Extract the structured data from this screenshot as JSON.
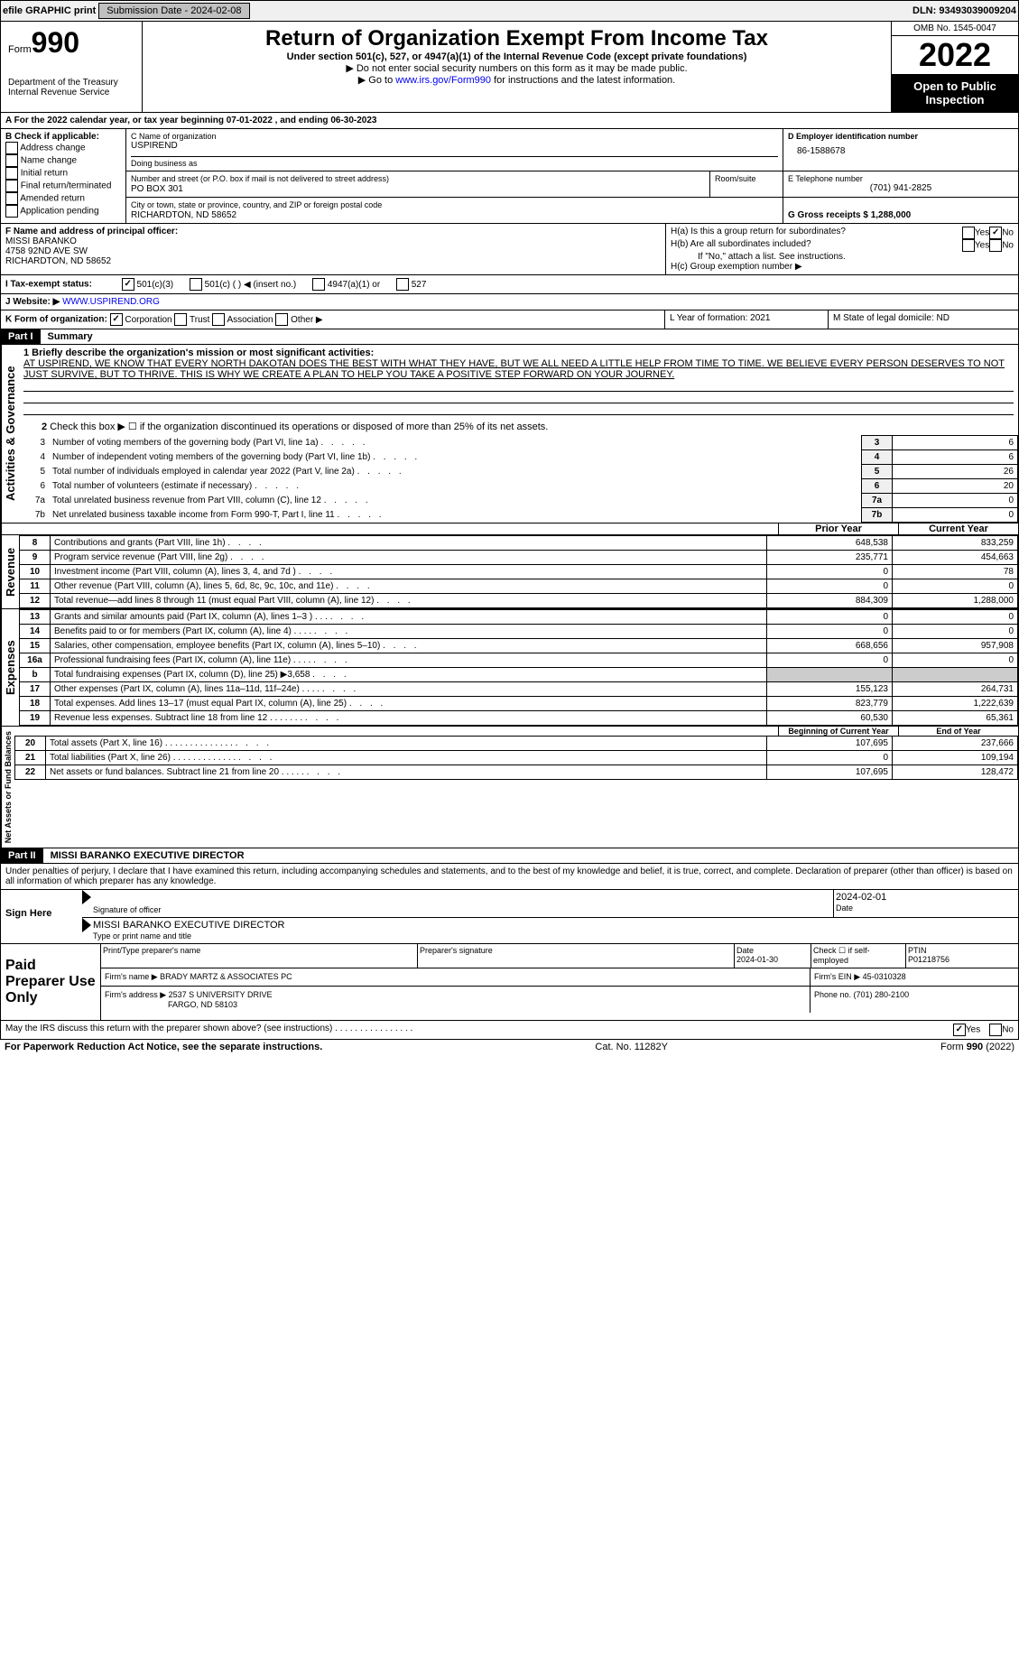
{
  "topbar": {
    "efile": "efile GRAPHIC print",
    "sub": "Submission Date - 2024-02-08",
    "dln": "DLN: 93493039009204"
  },
  "header": {
    "form": "990",
    "form_pre": "Form",
    "title": "Return of Organization Exempt From Income Tax",
    "sub1": "Under section 501(c), 527, or 4947(a)(1) of the Internal Revenue Code (except private foundations)",
    "sub2": "▶ Do not enter social security numbers on this form as it may be made public.",
    "sub3": "▶ Go to www.irs.gov/Form990 for instructions and the latest information.",
    "link": "www.irs.gov/Form990",
    "dept": "Department of the Treasury",
    "irs": "Internal Revenue Service",
    "omb": "OMB No. 1545-0047",
    "year": "2022",
    "open": "Open to Public Inspection"
  },
  "A": {
    "text": "A For the 2022 calendar year, or tax year beginning 07-01-2022 , and ending 06-30-2023"
  },
  "B": {
    "label": "B Check if applicable:",
    "addr": "Address change",
    "name": "Name change",
    "init": "Initial return",
    "final": "Final return/terminated",
    "amend": "Amended return",
    "app": "Application pending"
  },
  "C": {
    "label": "C Name of organization",
    "org": "USPIREND",
    "dba_label": "Doing business as",
    "dba": "",
    "addr_label": "Number and street (or P.O. box if mail is not delivered to street address)",
    "room": "Room/suite",
    "addr": "PO BOX 301",
    "city_label": "City or town, state or province, country, and ZIP or foreign postal code",
    "city": "RICHARDTON, ND 58652"
  },
  "D": {
    "label": "D Employer identification number",
    "ein": "86-1588678"
  },
  "E": {
    "label": "E Telephone number",
    "tel": "(701) 941-2825"
  },
  "G": {
    "label": "G Gross receipts $ 1,288,000"
  },
  "F": {
    "label": "F Name and address of principal officer:",
    "l1": "MISSI BARANKO",
    "l2": "4758 92ND AVE SW",
    "l3": "RICHARDTON, ND 58652"
  },
  "H": {
    "a": "H(a) Is this a group return for subordinates?",
    "b": "H(b) Are all subordinates included?",
    "note": "If \"No,\" attach a list. See instructions.",
    "c": "H(c) Group exemption number ▶",
    "yes": "Yes",
    "no": "No"
  },
  "I": {
    "label": "I Tax-exempt status:",
    "c3": "501(c)(3)",
    "c": "501(c) ( ) ◀ (insert no.)",
    "a1": "4947(a)(1) or",
    "s527": "527"
  },
  "J": {
    "label": "J Website: ▶",
    "url": "WWW.USPIREND.ORG"
  },
  "K": {
    "label": "K Form of organization:",
    "corp": "Corporation",
    "trust": "Trust",
    "assoc": "Association",
    "other": "Other ▶"
  },
  "L": {
    "label": "L Year of formation: 2021"
  },
  "M": {
    "label": "M State of legal domicile: ND"
  },
  "part1": {
    "title": "Part I",
    "name": "Summary",
    "l1": "1 Briefly describe the organization's mission or most significant activities:",
    "mission": "AT USPIREND, WE KNOW THAT EVERY NORTH DAKOTAN DOES THE BEST WITH WHAT THEY HAVE, BUT WE ALL NEED A LITTLE HELP FROM TIME TO TIME. WE BELIEVE EVERY PERSON DESERVES TO NOT JUST SURVIVE, BUT TO THRIVE. THIS IS WHY WE CREATE A PLAN TO HELP YOU TAKE A POSITIVE STEP FORWARD ON YOUR JOURNEY.",
    "l2": "Check this box ▶ ☐ if the organization discontinued its operations or disposed of more than 25% of its net assets.",
    "gov": [
      {
        "n": "3",
        "t": "Number of voting members of the governing body (Part VI, line 1a)",
        "v": "6"
      },
      {
        "n": "4",
        "t": "Number of independent voting members of the governing body (Part VI, line 1b)",
        "v": "6"
      },
      {
        "n": "5",
        "t": "Total number of individuals employed in calendar year 2022 (Part V, line 2a)",
        "v": "26"
      },
      {
        "n": "6",
        "t": "Total number of volunteers (estimate if necessary)",
        "v": "20"
      },
      {
        "n": "7a",
        "t": "Total unrelated business revenue from Part VIII, column (C), line 12",
        "v": "0"
      },
      {
        "n": "7b",
        "t": "Net unrelated business taxable income from Form 990-T, Part I, line 11",
        "v": "0"
      }
    ],
    "prior": "Prior Year",
    "current": "Current Year",
    "rev": [
      {
        "n": "8",
        "t": "Contributions and grants (Part VIII, line 1h)",
        "p": "648,538",
        "c": "833,259"
      },
      {
        "n": "9",
        "t": "Program service revenue (Part VIII, line 2g)",
        "p": "235,771",
        "c": "454,663"
      },
      {
        "n": "10",
        "t": "Investment income (Part VIII, column (A), lines 3, 4, and 7d )",
        "p": "0",
        "c": "78"
      },
      {
        "n": "11",
        "t": "Other revenue (Part VIII, column (A), lines 5, 6d, 8c, 9c, 10c, and 11e)",
        "p": "0",
        "c": "0"
      },
      {
        "n": "12",
        "t": "Total revenue—add lines 8 through 11 (must equal Part VIII, column (A), line 12)",
        "p": "884,309",
        "c": "1,288,000"
      }
    ],
    "exp": [
      {
        "n": "13",
        "t": "Grants and similar amounts paid (Part IX, column (A), lines 1–3 ) . . .",
        "p": "0",
        "c": "0"
      },
      {
        "n": "14",
        "t": "Benefits paid to or for members (Part IX, column (A), line 4) . . . .",
        "p": "0",
        "c": "0"
      },
      {
        "n": "15",
        "t": "Salaries, other compensation, employee benefits (Part IX, column (A), lines 5–10)",
        "p": "668,656",
        "c": "957,908"
      },
      {
        "n": "16a",
        "t": "Professional fundraising fees (Part IX, column (A), line 11e) . . . .",
        "p": "0",
        "c": "0"
      },
      {
        "n": "b",
        "t": "Total fundraising expenses (Part IX, column (D), line 25) ▶3,658",
        "p": "",
        "c": ""
      },
      {
        "n": "17",
        "t": "Other expenses (Part IX, column (A), lines 11a–11d, 11f–24e) . . . .",
        "p": "155,123",
        "c": "264,731"
      },
      {
        "n": "18",
        "t": "Total expenses. Add lines 13–17 (must equal Part IX, column (A), line 25)",
        "p": "823,779",
        "c": "1,222,639"
      },
      {
        "n": "19",
        "t": "Revenue less expenses. Subtract line 18 from line 12 . . . . . . .",
        "p": "60,530",
        "c": "65,361"
      }
    ],
    "begin": "Beginning of Current Year",
    "end": "End of Year",
    "net": [
      {
        "n": "20",
        "t": "Total assets (Part X, line 16) . . . . . . . . . . . . . .",
        "p": "107,695",
        "c": "237,666"
      },
      {
        "n": "21",
        "t": "Total liabilities (Part X, line 26) . . . . . . . . . . . . .",
        "p": "0",
        "c": "109,194"
      },
      {
        "n": "22",
        "t": "Net assets or fund balances. Subtract line 21 from line 20 . . . . .",
        "p": "107,695",
        "c": "128,472"
      }
    ],
    "vlabels": {
      "gov": "Activities & Governance",
      "rev": "Revenue",
      "exp": "Expenses",
      "net": "Net Assets or Fund Balances"
    }
  },
  "part2": {
    "title": "Part II",
    "name": "MISSI BARANKO EXECUTIVE DIRECTOR",
    "decl": "Under penalties of perjury, I declare that I have examined this return, including accompanying schedules and statements, and to the best of my knowledge and belief, it is true, correct, and complete. Declaration of preparer (other than officer) is based on all information of which preparer has any knowledge.",
    "date": "2024-02-01",
    "sig_label": "Signature of officer",
    "date_label": "Date",
    "name_label": "Type or print name and title",
    "sign": "Sign Here",
    "paid": "Paid Preparer Use Only",
    "pt": "Print/Type preparer's name",
    "ps": "Preparer's signature",
    "pd": "Date",
    "pdv": "2024-01-30",
    "chk": "Check ☐ if self-employed",
    "ptin": "PTIN",
    "ptinv": "P01218756",
    "firm": "Firm's name ▶ BRADY MARTZ & ASSOCIATES PC",
    "fein": "Firm's EIN ▶ 45-0310328",
    "faddr": "Firm's address ▶ 2537 S UNIVERSITY DRIVE",
    "fcity": "FARGO, ND 58103",
    "fphone": "Phone no. (701) 280-2100",
    "may": "May the IRS discuss this return with the preparer shown above? (see instructions) . . . . . . . . . . . . . . . .",
    "yes": "Yes",
    "no": "No"
  },
  "footer": {
    "pra": "For Paperwork Reduction Act Notice, see the separate instructions.",
    "cat": "Cat. No. 11282Y",
    "form": "Form 990 (2022)"
  }
}
